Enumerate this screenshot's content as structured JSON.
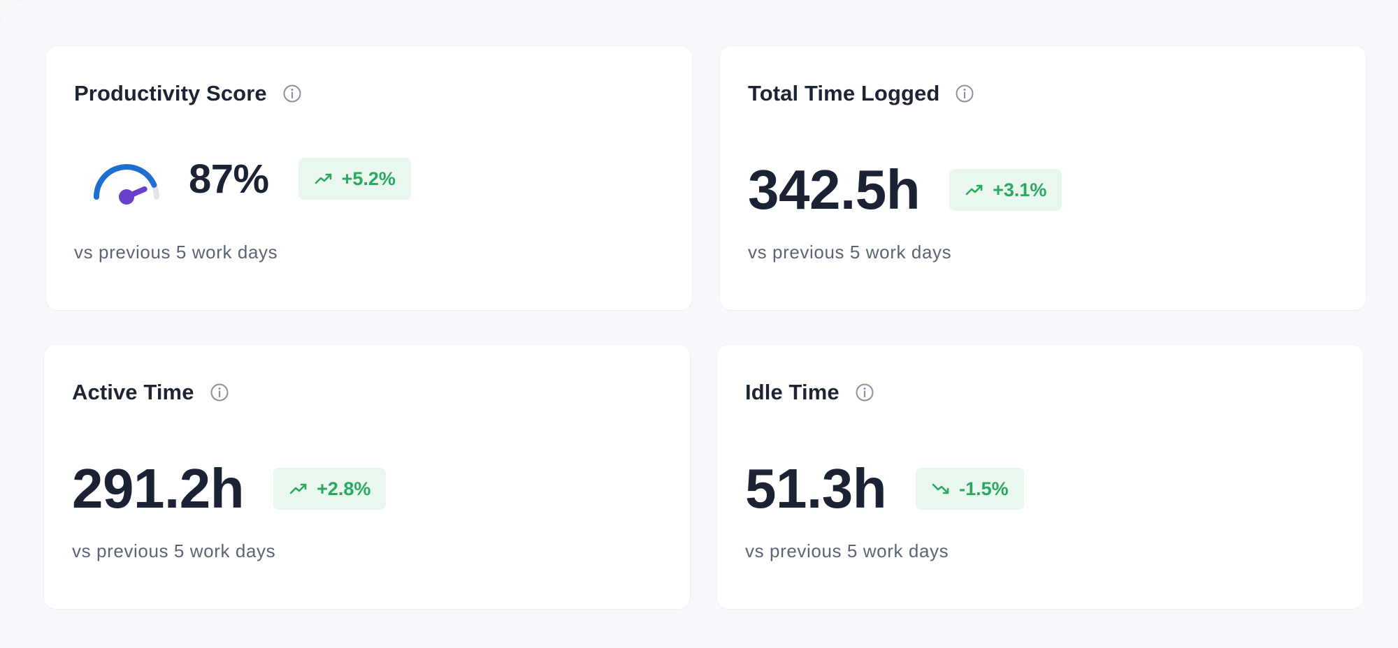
{
  "cards": [
    {
      "title": "Productivity Score",
      "value": "87%",
      "change": "+5.2%",
      "trend": "up",
      "subtext": "vs previous 5 work days",
      "gauge_percent": 87
    },
    {
      "title": "Total Time Logged",
      "value": "342.5h",
      "change": "+3.1%",
      "trend": "up",
      "subtext": "vs previous 5 work days"
    },
    {
      "title": "Active Time",
      "value": "291.2h",
      "change": "+2.8%",
      "trend": "up",
      "subtext": "vs previous 5 work days"
    },
    {
      "title": "Idle Time",
      "value": "51.3h",
      "change": "-1.5%",
      "trend": "down",
      "subtext": "vs previous 5 work days"
    }
  ],
  "icons": {
    "info": "info-circle-icon",
    "trend_up": "trending-up-icon",
    "trend_down": "trending-down-icon"
  },
  "colors": {
    "gauge_arc": "#1f6fd1",
    "gauge_track": "#e2e4ea",
    "gauge_needle": "#6a3fc9",
    "positive_text": "#2aa862",
    "positive_bg": "#e9f7ee"
  }
}
